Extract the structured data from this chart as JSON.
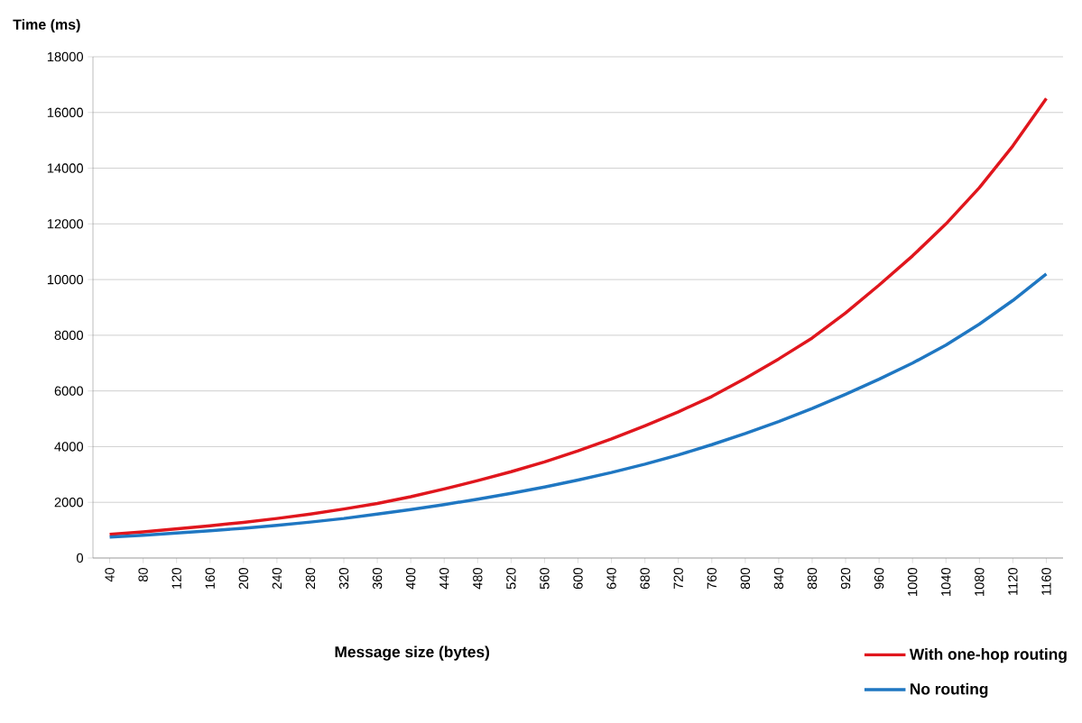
{
  "chart_data": {
    "type": "line",
    "xlabel": "Message size (bytes)",
    "ylabel": "Time (ms)",
    "categories": [
      "40",
      "80",
      "120",
      "160",
      "200",
      "240",
      "280",
      "320",
      "360",
      "400",
      "440",
      "480",
      "520",
      "560",
      "600",
      "640",
      "680",
      "720",
      "760",
      "800",
      "840",
      "880",
      "920",
      "960",
      "1000",
      "1040",
      "1080",
      "1120",
      "1160"
    ],
    "series": [
      {
        "name": "With one-hop routing",
        "color": "#e0161d",
        "values": [
          850,
          940,
          1050,
          1160,
          1280,
          1420,
          1580,
          1760,
          1960,
          2200,
          2480,
          2780,
          3100,
          3450,
          3850,
          4280,
          4750,
          5250,
          5800,
          6450,
          7150,
          7900,
          8800,
          9800,
          10850,
          12000,
          13300,
          14800,
          16500
        ]
      },
      {
        "name": "No routing",
        "color": "#1f77c2",
        "values": [
          750,
          820,
          900,
          980,
          1070,
          1170,
          1290,
          1420,
          1580,
          1740,
          1920,
          2110,
          2320,
          2550,
          2800,
          3070,
          3370,
          3700,
          4070,
          4470,
          4900,
          5370,
          5880,
          6420,
          7000,
          7650,
          8400,
          9250,
          10200
        ]
      }
    ],
    "ylim": [
      0,
      18000
    ],
    "yticks": [
      0,
      2000,
      4000,
      6000,
      8000,
      10000,
      12000,
      14000,
      16000,
      18000
    ],
    "grid": "y",
    "legend": "bottom right",
    "marker": "none",
    "line_style": "solid"
  }
}
